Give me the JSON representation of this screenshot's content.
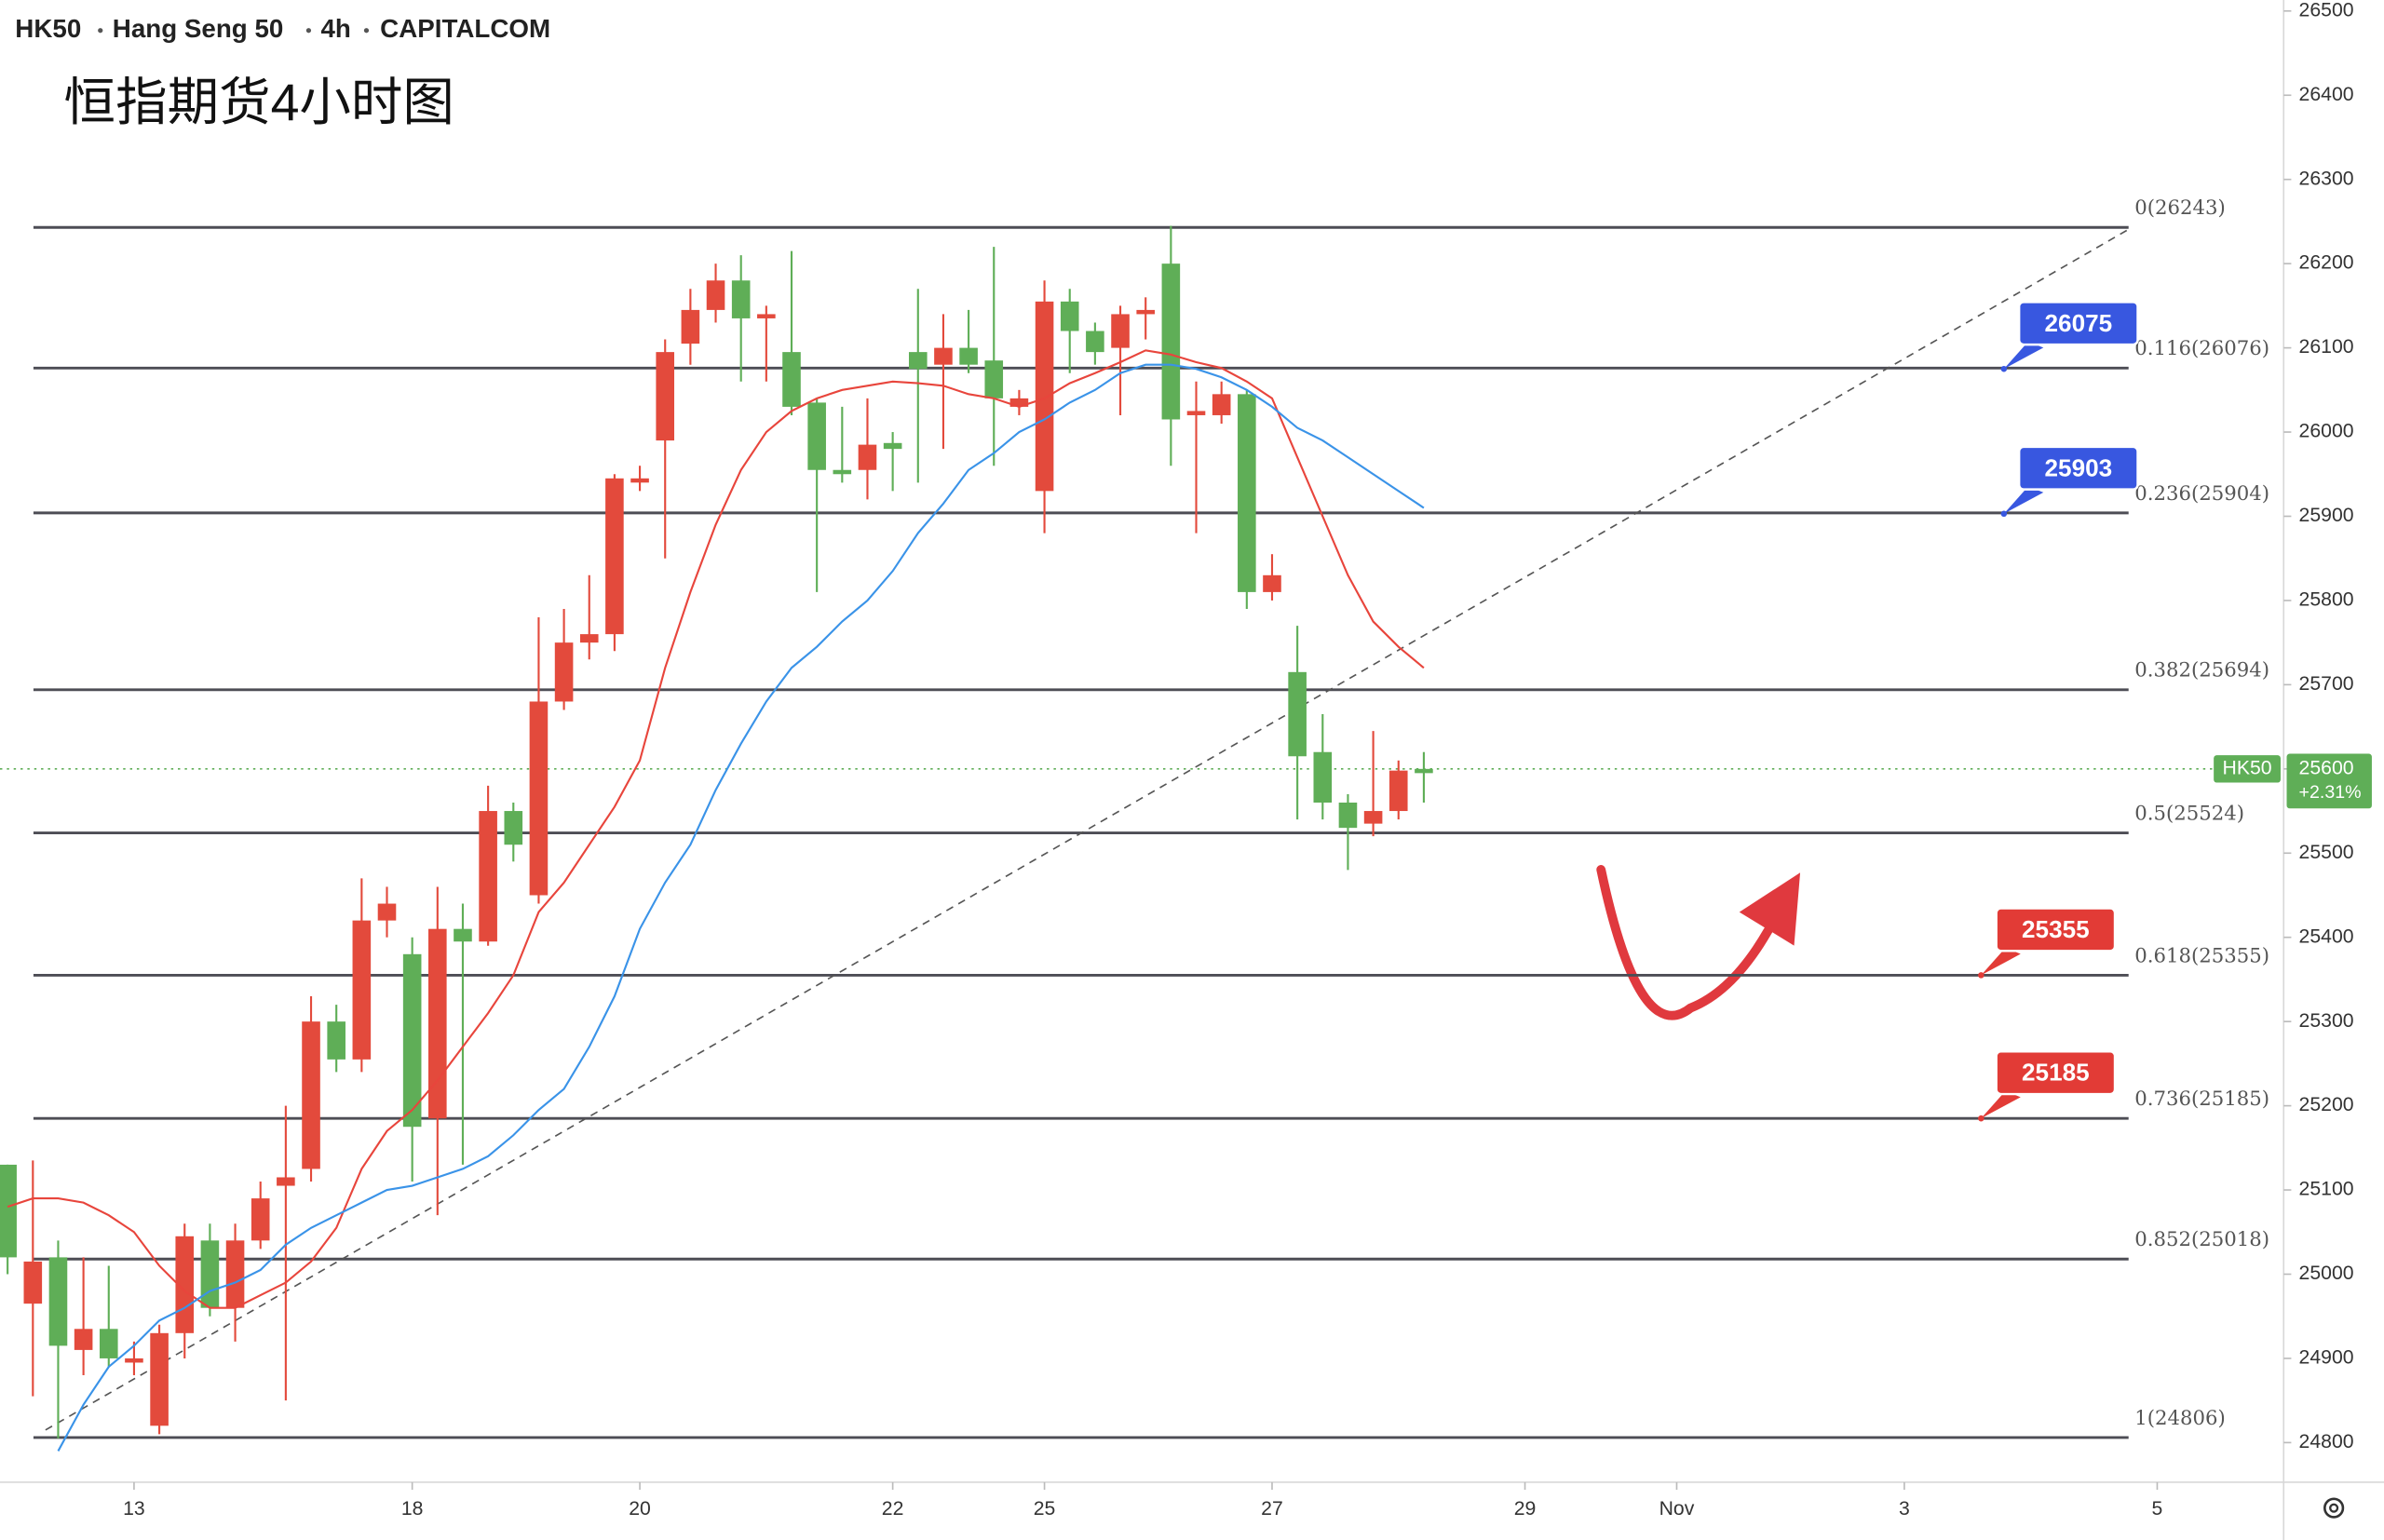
{
  "chart_data": {
    "type": "candlestick",
    "symbol": "HK50",
    "name": "Hang Seng 50",
    "interval": "4h",
    "source": "CAPITALCOM",
    "title": "恒指期货4小时图",
    "up_color": "#5fae57",
    "down_color": "#e34a3c",
    "candles": {
      "open": [
        25020,
        25015,
        24915,
        24935,
        24900,
        24900,
        24930,
        25045,
        24960,
        25040,
        25090,
        25115,
        25300,
        25255,
        25420,
        25440,
        25175,
        25410,
        25395,
        25550,
        25510,
        25680,
        25750,
        25760,
        25945,
        25945,
        26095,
        26145,
        26180,
        26135,
        26140,
        26030,
        25955,
        25950,
        25985,
        25980,
        26075,
        26100,
        26080,
        26040,
        26040,
        26155,
        26120,
        26095,
        26140,
        26145,
        26015,
        26025,
        26045,
        25810,
        25830,
        25615,
        25560,
        25530,
        25550,
        25598,
        25595
      ],
      "high": [
        25130,
        25135,
        25040,
        25020,
        25010,
        24920,
        24940,
        25060,
        25060,
        25060,
        25110,
        25200,
        25330,
        25320,
        25470,
        25460,
        25400,
        25460,
        25440,
        25580,
        25560,
        25780,
        25790,
        25830,
        25950,
        25960,
        26110,
        26170,
        26200,
        26210,
        26150,
        26215,
        26040,
        26030,
        26040,
        26000,
        26170,
        26140,
        26145,
        26220,
        26050,
        26180,
        26170,
        26130,
        26150,
        26160,
        26245,
        26060,
        26060,
        26050,
        25855,
        25770,
        25665,
        25570,
        25645,
        25610,
        25620
      ],
      "low": [
        25000,
        24855,
        24805,
        24880,
        24890,
        24880,
        24810,
        24900,
        24950,
        24920,
        25030,
        24850,
        25110,
        25240,
        25240,
        25400,
        25110,
        25070,
        25130,
        25390,
        25490,
        25440,
        25670,
        25730,
        25740,
        25930,
        25850,
        26080,
        26130,
        26060,
        26060,
        26020,
        25810,
        25940,
        25920,
        25930,
        25940,
        25980,
        26070,
        25960,
        26020,
        25880,
        26070,
        26080,
        26020,
        26110,
        25960,
        25880,
        26010,
        25790,
        25800,
        25540,
        25540,
        25480,
        25520,
        25540,
        25560
      ],
      "close": [
        25130,
        24965,
        25020,
        24910,
        24935,
        24895,
        24820,
        24930,
        25040,
        24960,
        25040,
        25105,
        25125,
        25300,
        25255,
        25420,
        25380,
        25185,
        25410,
        25395,
        25550,
        25450,
        25680,
        25750,
        25760,
        25940,
        25990,
        26105,
        26145,
        26180,
        26135,
        26095,
        26035,
        25955,
        25955,
        25987,
        26095,
        26080,
        26100,
        26085,
        26030,
        25930,
        26155,
        26120,
        26100,
        26140,
        26200,
        26020,
        26020,
        26045,
        25810,
        25715,
        25620,
        25560,
        25535,
        25550,
        25600
      ]
    },
    "ma_fast": {
      "color": "#e8453c",
      "values": [
        25080,
        25090,
        25090,
        25085,
        25070,
        25050,
        25010,
        24980,
        24960,
        24960,
        24975,
        24990,
        25015,
        25055,
        25125,
        25170,
        25195,
        25230,
        25270,
        25310,
        25355,
        25430,
        25465,
        25510,
        25555,
        25610,
        25720,
        25810,
        25890,
        25955,
        26000,
        26025,
        26040,
        26050,
        26055,
        26060,
        26058,
        26055,
        26045,
        26040,
        26030,
        26040,
        26058,
        26070,
        26083,
        26097,
        26092,
        26083,
        26076,
        26060,
        26040,
        25970,
        25900,
        25830,
        25775,
        25745,
        25720
      ]
    },
    "ma_slow": {
      "color": "#3a93e8",
      "values": [
        null,
        null,
        24790,
        24845,
        24890,
        24915,
        24945,
        24960,
        24980,
        24990,
        25005,
        25035,
        25055,
        25070,
        25085,
        25100,
        25105,
        25115,
        25125,
        25140,
        25165,
        25195,
        25220,
        25270,
        25330,
        25410,
        25465,
        25510,
        25575,
        25630,
        25680,
        25720,
        25745,
        25775,
        25800,
        25835,
        25880,
        25915,
        25955,
        25975,
        26000,
        26015,
        26035,
        26050,
        26070,
        26080,
        26080,
        26075,
        26065,
        26050,
        26030,
        26005,
        25990,
        25970,
        25950,
        25930,
        25910
      ]
    },
    "fib_levels": [
      {
        "value": 26243,
        "label": "0(26243)"
      },
      {
        "value": 26076,
        "label": "0.116(26076)"
      },
      {
        "value": 25904,
        "label": "0.236(25904)"
      },
      {
        "value": 25694,
        "label": "0.382(25694)"
      },
      {
        "value": 25524,
        "label": "0.5(25524)"
      },
      {
        "value": 25355,
        "label": "0.618(25355)"
      },
      {
        "value": 25185,
        "label": "0.736(25185)"
      },
      {
        "value": 25018,
        "label": "0.852(25018)"
      },
      {
        "value": 24806,
        "label": "1(24806)"
      }
    ],
    "callouts": [
      {
        "value": 26075,
        "color": "#3857e0"
      },
      {
        "value": 25903,
        "color": "#3857e0"
      },
      {
        "value": 25355,
        "color": "#e23b36"
      },
      {
        "value": 25185,
        "color": "#e23b36"
      }
    ],
    "trendline": {
      "x": [
        1.5,
        84
      ],
      "values": [
        24815,
        26243
      ]
    },
    "last_price": {
      "label": "HK50",
      "change": "+2.31%",
      "color": "#5fae57"
    },
    "xlim": [
      -0.3,
      90
    ],
    "xticks": [
      {
        "value": 5,
        "label": "13"
      },
      {
        "value": 16,
        "label": "18"
      },
      {
        "value": 25,
        "label": "20"
      },
      {
        "value": 35,
        "label": "22"
      },
      {
        "value": 41,
        "label": "25"
      },
      {
        "value": 50,
        "label": "27"
      },
      {
        "value": 60,
        "label": "29"
      },
      {
        "value": 66,
        "label": "Nov"
      },
      {
        "value": 75,
        "label": "3"
      },
      {
        "value": 85,
        "label": "5"
      }
    ],
    "ylim": [
      24753,
      26513
    ],
    "yticks": [
      24800,
      24900,
      25000,
      25100,
      25200,
      25300,
      25400,
      25500,
      25600,
      25700,
      25800,
      25900,
      26000,
      26100,
      26200,
      26300,
      26400,
      26500
    ]
  }
}
